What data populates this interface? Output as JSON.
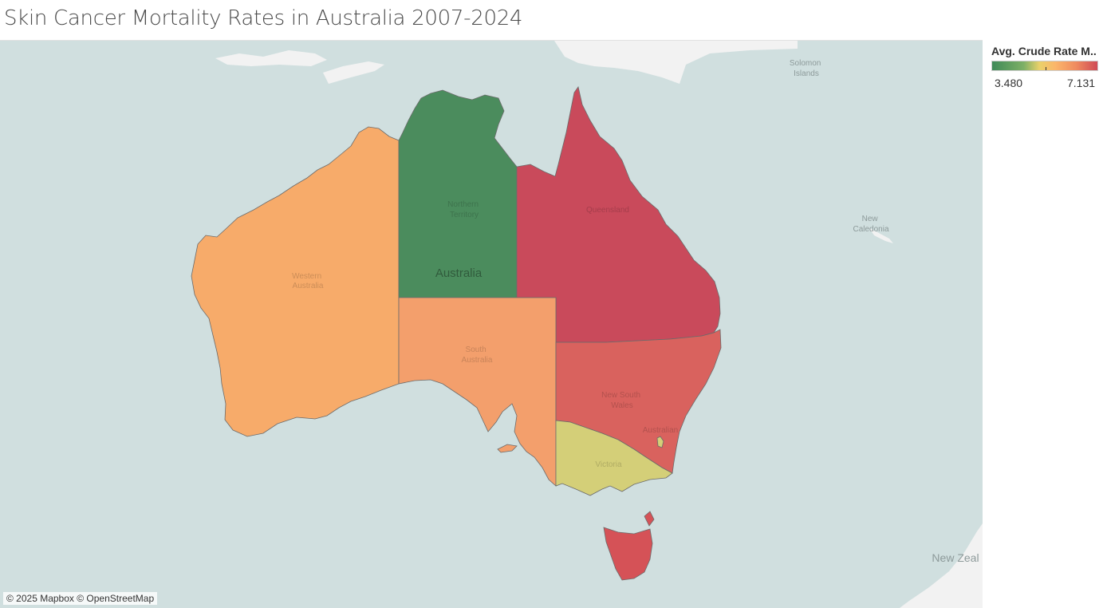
{
  "title": "Skin Cancer Mortality Rates in Australia 2007-2024",
  "legend": {
    "title": "Avg. Crude Rate M..",
    "min_label": "3.480",
    "max_label": "7.131",
    "min_value": 3.48,
    "max_value": 7.131
  },
  "colors": {
    "ocean": "#d0dfdf",
    "land": "#f2f2f2",
    "western_australia": "#f7ab6a",
    "northern_territory": "#4b8c5d",
    "queensland": "#c94a5b",
    "south_australia": "#f39f6c",
    "new_south_wales": "#d9625e",
    "victoria": "#d4cf78",
    "tasmania": "#d55257"
  },
  "map_labels": {
    "country": "Australia",
    "northern_territory": [
      "Northern",
      "Territory"
    ],
    "western_australia": [
      "Western",
      "Australia"
    ],
    "south_australia": [
      "South",
      "Australia"
    ],
    "queensland": "Queensland",
    "new_south_wales": [
      "New South",
      "Wales"
    ],
    "act": "Australian",
    "victoria": "Victoria",
    "solomon": [
      "Solomon",
      "Islands"
    ],
    "new_caledonia": [
      "New",
      "Caledonia"
    ],
    "new_zealand": "New Zeal"
  },
  "attribution": "© 2025 Mapbox © OpenStreetMap"
}
